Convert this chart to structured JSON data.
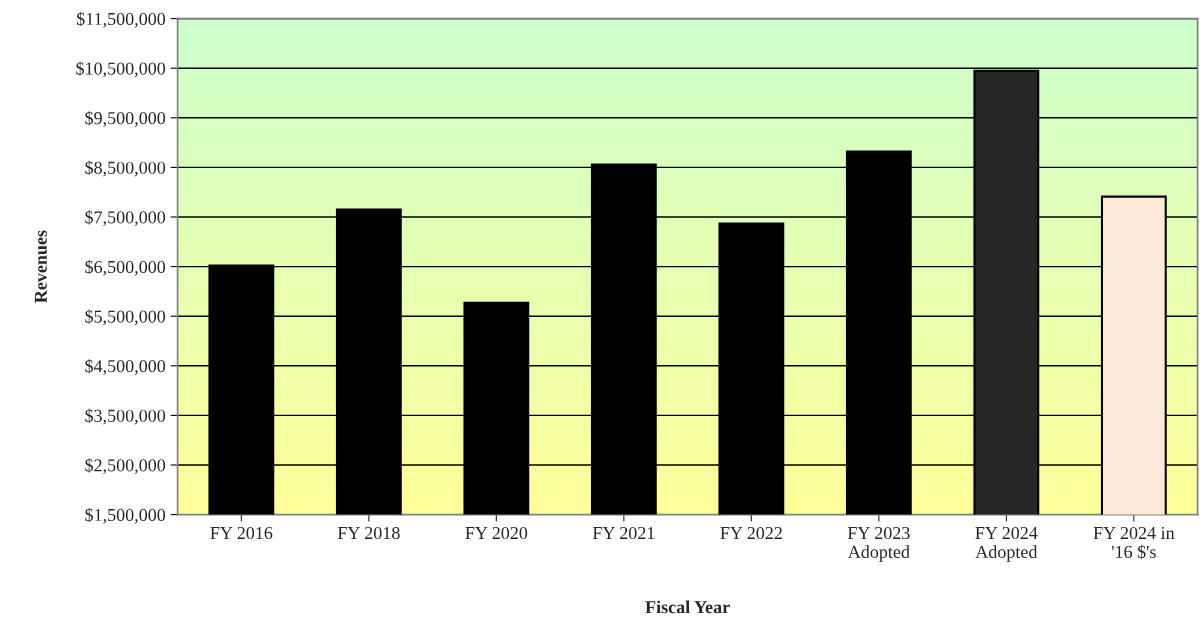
{
  "chart_data": {
    "type": "bar",
    "xlabel": "Fiscal Year",
    "ylabel": "Revenues",
    "categories": [
      "FY 2016",
      "FY 2018",
      "FY 2020",
      "FY 2021",
      "FY 2022",
      "FY 2023\nAdopted",
      "FY 2024\nAdopted",
      "FY 2024 in\n'16 $'s"
    ],
    "values": [
      6520000,
      7650000,
      5770000,
      8560000,
      7370000,
      8820000,
      10450000,
      7910000
    ],
    "colors": [
      "#000000",
      "#000000",
      "#000000",
      "#000000",
      "#000000",
      "#000000",
      "#262626",
      "#fde9d9"
    ],
    "ylim": [
      1500000,
      11500000
    ],
    "yticks": [
      {
        "value": 1500000,
        "label": "$1,500,000"
      },
      {
        "value": 2500000,
        "label": "$2,500,000"
      },
      {
        "value": 3500000,
        "label": "$3,500,000"
      },
      {
        "value": 4500000,
        "label": "$4,500,000"
      },
      {
        "value": 5500000,
        "label": "$5,500,000"
      },
      {
        "value": 6500000,
        "label": "$6,500,000"
      },
      {
        "value": 7500000,
        "label": "$7,500,000"
      },
      {
        "value": 8500000,
        "label": "$8,500,000"
      },
      {
        "value": 9500000,
        "label": "$9,500,000"
      },
      {
        "value": 10500000,
        "label": "$10,500,000"
      },
      {
        "value": 11500000,
        "label": "$11,500,000"
      }
    ],
    "grid": "y",
    "legend": false
  }
}
